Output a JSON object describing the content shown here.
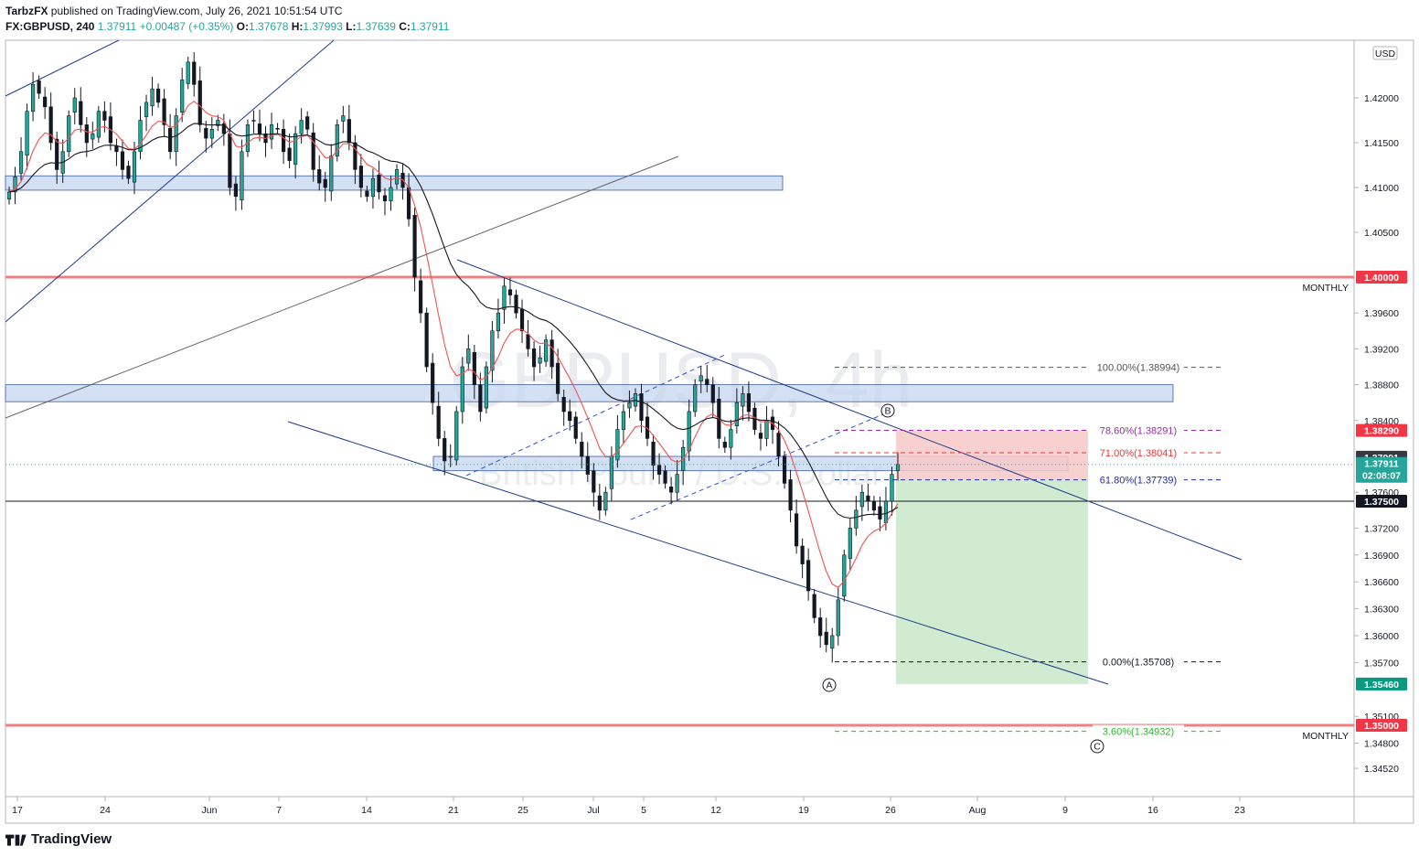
{
  "header": {
    "publisher": "TarbzFX",
    "published_line": "published on TradingView.com, July 26, 2021 10:51:54 UTC",
    "symbol": "FX:GBPUSD",
    "interval": "240",
    "last": "1.37911",
    "change": "+0.00487 (+0.35%)",
    "o_label": "O:",
    "o_value": "1.37678",
    "h_label": "H:",
    "h_value": "1.37993",
    "l_label": "L:",
    "l_value": "1.37639",
    "c_label": "C:",
    "c_value": "1.37911"
  },
  "footer": {
    "brand": "TradingView"
  },
  "watermark": {
    "big": "GBPUSD, 4h",
    "small": "British Pound / U.S. Dollar"
  },
  "currency_badge": "USD",
  "chart_data": {
    "type": "candlestick",
    "y_range": [
      1.343,
      1.426
    ],
    "y_ticks": [
      "1.42000",
      "1.41500",
      "1.41000",
      "1.40500",
      "1.39600",
      "1.39200",
      "1.38800",
      "1.38400",
      "1.37600",
      "1.37200",
      "1.36900",
      "1.36600",
      "1.36300",
      "1.36000",
      "1.35700",
      "1.35100",
      "1.34800",
      "1.34520"
    ],
    "x_ticks": [
      "17",
      "24",
      "Jun",
      "7",
      "14",
      "21",
      "25",
      "Jul",
      "5",
      "12",
      "19",
      "26",
      "Aug",
      "9",
      "16",
      "23"
    ],
    "price_tags": [
      {
        "label": "1.40000",
        "value": 1.4,
        "color": "#f23645"
      },
      {
        "label": "1.38290",
        "value": 1.3829,
        "color": "#f23645"
      },
      {
        "label": "1.37991",
        "value": 1.37991,
        "color": "#363a45"
      },
      {
        "label": "1.37911",
        "value": 1.37911,
        "color": "#26a69a",
        "sub": "02:08:07"
      },
      {
        "label": "1.37500",
        "value": 1.375,
        "color": "#131722"
      },
      {
        "label": "1.35460",
        "value": 1.3546,
        "color": "#089981"
      },
      {
        "label": "1.35000",
        "value": 1.35,
        "color": "#f23645"
      }
    ],
    "monthly_levels": [
      {
        "value": 1.4,
        "label": "MONTHLY"
      },
      {
        "value": 1.35,
        "label": "MONTHLY"
      }
    ],
    "horizontal_line": 1.375,
    "fib_levels": [
      {
        "label": "100.00%(1.38994)",
        "value": 1.38994,
        "color": "#555555"
      },
      {
        "label": "78.60%(1.38291)",
        "value": 1.38291,
        "color": "#9c27b0"
      },
      {
        "label": "71.00%(1.38041)",
        "value": 1.38041,
        "color": "#e53935"
      },
      {
        "label": "61.80%(1.37739)",
        "value": 1.37739,
        "color": "#1e2fa8"
      },
      {
        "label": "0.00%(1.35708)",
        "value": 1.35708,
        "color": "#131722"
      },
      {
        "label": "3.60%(1.34932)",
        "value": 1.34932,
        "color": "#2fb52f"
      }
    ],
    "wave_labels": [
      "A",
      "B",
      "C"
    ],
    "position": {
      "entry": 1.37739,
      "stop": 1.3829,
      "target": 1.3546
    },
    "zones": [
      {
        "top": 1.4113,
        "bottom": 1.4097
      },
      {
        "top": 1.388,
        "bottom": 1.3861
      },
      {
        "top": 1.38,
        "bottom": 1.3784
      }
    ],
    "close_path": [
      1.4095,
      1.4112,
      1.414,
      1.4185,
      1.4215,
      1.4205,
      1.419,
      1.415,
      1.412,
      1.414,
      1.418,
      1.42,
      1.417,
      1.415,
      1.416,
      1.4185,
      1.4175,
      1.415,
      1.414,
      1.412,
      1.411,
      1.414,
      1.4175,
      1.4195,
      1.421,
      1.4195,
      1.417,
      1.414,
      1.418,
      1.422,
      1.424,
      1.4215,
      1.417,
      1.4155,
      1.4165,
      1.4175,
      1.416,
      1.41,
      1.409,
      1.414,
      1.417,
      1.4175,
      1.416,
      1.415,
      1.417,
      1.4165,
      1.414,
      1.413,
      1.416,
      1.4175,
      1.4165,
      1.412,
      1.4105,
      1.41,
      1.4135,
      1.417,
      1.418,
      1.415,
      1.412,
      1.41,
      1.409,
      1.411,
      1.4095,
      1.4085,
      1.41,
      1.412,
      1.41,
      1.4065,
      1.4,
      1.396,
      1.39,
      1.386,
      1.382,
      1.3795,
      1.38,
      1.385,
      1.39,
      1.392,
      1.388,
      1.385,
      1.39,
      1.394,
      1.396,
      1.399,
      1.398,
      1.396,
      1.394,
      1.392,
      1.39,
      1.391,
      1.393,
      1.39,
      1.387,
      1.385,
      1.384,
      1.382,
      1.38,
      1.378,
      1.376,
      1.374,
      1.376,
      1.38,
      1.383,
      1.385,
      1.386,
      1.387,
      1.384,
      1.382,
      1.379,
      1.378,
      1.377,
      1.376,
      1.378,
      1.381,
      1.385,
      1.388,
      1.389,
      1.388,
      1.386,
      1.382,
      1.381,
      1.383,
      1.386,
      1.387,
      1.385,
      1.383,
      1.382,
      1.384,
      1.383,
      1.38,
      1.377,
      1.374,
      1.37,
      1.368,
      1.365,
      1.362,
      1.36,
      1.359,
      1.36,
      1.364,
      1.369,
      1.372,
      1.374,
      1.376,
      1.375,
      1.374,
      1.373,
      1.375,
      1.378,
      1.3791
    ]
  }
}
